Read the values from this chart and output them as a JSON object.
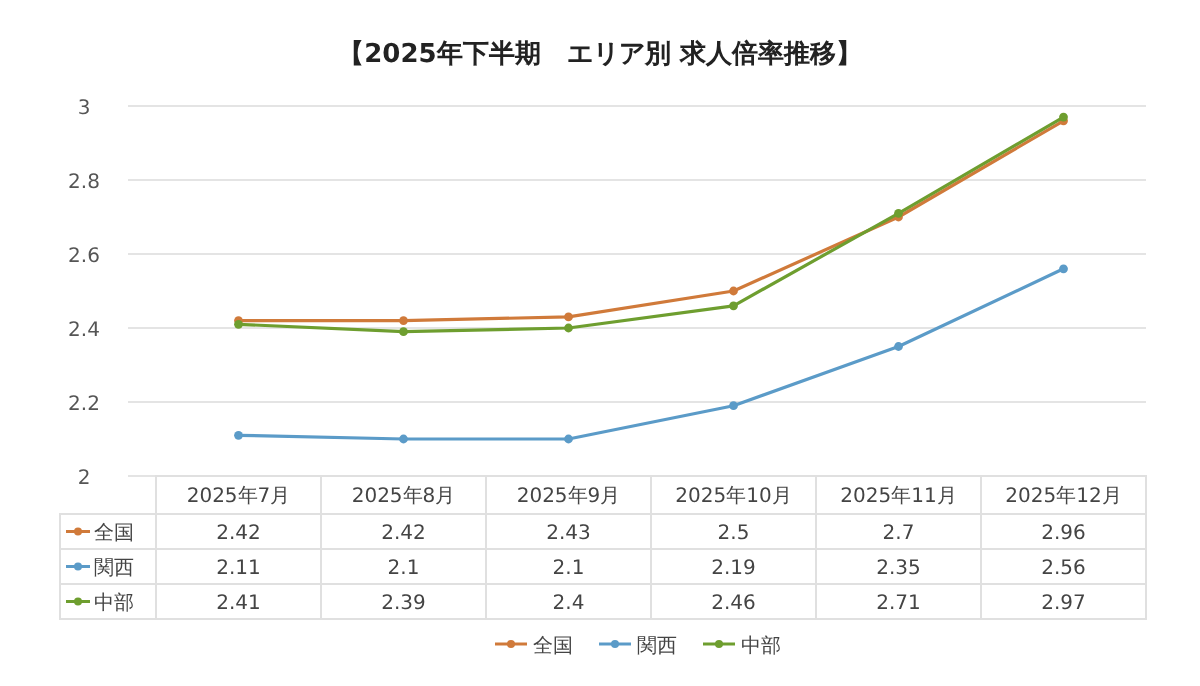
{
  "chart_data": {
    "type": "line",
    "title": "【2025年下半期　エリア別 求人倍率推移】",
    "categories": [
      "2025年7月",
      "2025年8月",
      "2025年9月",
      "2025年10月",
      "2025年11月",
      "2025年12月"
    ],
    "series": [
      {
        "name": "全国",
        "color": "#d07a3a",
        "values": [
          2.42,
          2.42,
          2.43,
          2.5,
          2.7,
          2.96
        ]
      },
      {
        "name": "関西",
        "color": "#5b9bc8",
        "values": [
          2.11,
          2.1,
          2.1,
          2.19,
          2.35,
          2.56
        ]
      },
      {
        "name": "中部",
        "color": "#6e9e2f",
        "values": [
          2.41,
          2.39,
          2.4,
          2.46,
          2.71,
          2.97
        ]
      }
    ],
    "ylim": [
      2,
      3
    ],
    "yticks": [
      2,
      2.2,
      2.4,
      2.6,
      2.8,
      3
    ],
    "grid": "y",
    "legend": "bottom",
    "marker": "circle",
    "line_style": "solid",
    "data_labels": true
  }
}
